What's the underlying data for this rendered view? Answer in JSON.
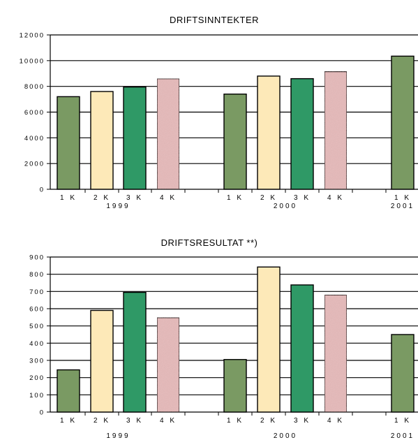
{
  "colors": {
    "q1": "#7a9a63",
    "q2": "#fde9b8",
    "q3": "#2f9966",
    "q4": "#e6bcbc",
    "stroke": "#000000",
    "background": "#ffffff"
  },
  "chart_data": [
    {
      "type": "bar",
      "title": "DRIFTSINNTEKTER",
      "ylim": [
        0,
        12000
      ],
      "yticks": [
        "12000",
        "10000",
        "8000",
        "6000",
        "4000",
        "2000",
        "0"
      ],
      "groups": [
        {
          "year": "1999",
          "bars": [
            {
              "label": "1 K",
              "value": 7200,
              "quarter": "q1"
            },
            {
              "label": "2 K",
              "value": 7600,
              "quarter": "q2"
            },
            {
              "label": "3 K",
              "value": 7950,
              "quarter": "q3"
            },
            {
              "label": "4 K",
              "value": 8600,
              "quarter": "q4"
            }
          ]
        },
        {
          "year": "2000",
          "bars": [
            {
              "label": "1 K",
              "value": 7400,
              "quarter": "q1"
            },
            {
              "label": "2 K",
              "value": 8800,
              "quarter": "q2"
            },
            {
              "label": "3 K",
              "value": 8600,
              "quarter": "q3"
            },
            {
              "label": "4 K",
              "value": 9150,
              "quarter": "q4"
            }
          ]
        },
        {
          "year": "2001",
          "bars": [
            {
              "label": "1 K",
              "value": 10350,
              "quarter": "q1"
            }
          ]
        }
      ],
      "grid": true
    },
    {
      "type": "bar",
      "title": "DRIFTSRESULTAT **)",
      "ylim": [
        0,
        900
      ],
      "yticks": [
        "900",
        "800",
        "700",
        "600",
        "500",
        "400",
        "300",
        "200",
        "100",
        "0"
      ],
      "groups": [
        {
          "year": "1999",
          "bars": [
            {
              "label": "1 K",
              "value": 245,
              "quarter": "q1"
            },
            {
              "label": "2 K",
              "value": 590,
              "quarter": "q2"
            },
            {
              "label": "3 K",
              "value": 695,
              "quarter": "q3"
            },
            {
              "label": "4 K",
              "value": 548,
              "quarter": "q4"
            }
          ]
        },
        {
          "year": "2000",
          "bars": [
            {
              "label": "1 K",
              "value": 305,
              "quarter": "q1"
            },
            {
              "label": "2 K",
              "value": 842,
              "quarter": "q2"
            },
            {
              "label": "3 K",
              "value": 738,
              "quarter": "q3"
            },
            {
              "label": "4 K",
              "value": 680,
              "quarter": "q4"
            }
          ]
        },
        {
          "year": "2001",
          "bars": [
            {
              "label": "1 K",
              "value": 450,
              "quarter": "q1"
            }
          ]
        }
      ],
      "grid": true
    }
  ]
}
